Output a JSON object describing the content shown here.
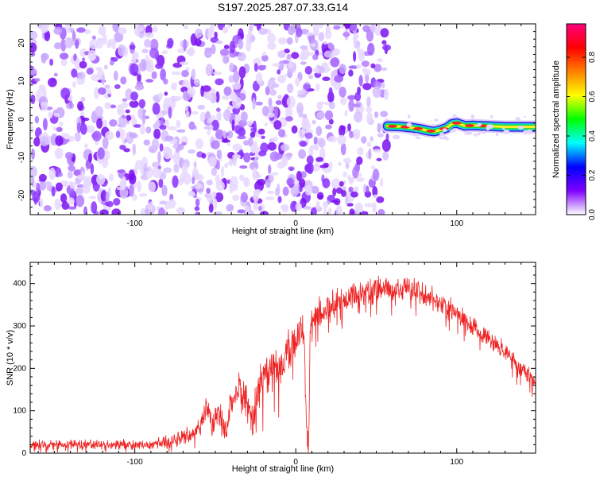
{
  "title": "S197.2025.287.07.33.G14",
  "chart_data": [
    {
      "type": "heatmap",
      "xlabel": "Height of straight line (km)",
      "ylabel": "Frequency (Hz)",
      "xlim": [
        -165,
        149
      ],
      "ylim": [
        -25,
        25
      ],
      "xticks": [
        -100,
        0,
        100
      ],
      "yticks": [
        -20,
        -10,
        0,
        10,
        20
      ],
      "noise_region_x": [
        -165,
        57
      ],
      "signal_region_x": [
        57,
        149
      ],
      "signal_trace": {
        "x": [
          57,
          65,
          72,
          78,
          82,
          86,
          90,
          94,
          97,
          100,
          105,
          110,
          115,
          120,
          125,
          130,
          135,
          140,
          145,
          149
        ],
        "y": [
          -1.8,
          -1.9,
          -2.2,
          -2.6,
          -3.0,
          -3.2,
          -2.8,
          -2.2,
          -1.2,
          -1.0,
          -1.7,
          -1.6,
          -1.7,
          -1.8,
          -1.9,
          -2.0,
          -2.0,
          -2.0,
          -2.0,
          -2.0
        ]
      },
      "colorbar": {
        "label": "Normalized spectral amplitude",
        "min": 0.0,
        "max": 0.97,
        "ticks": [
          0.0,
          0.2,
          0.4,
          0.6,
          0.8
        ],
        "tick_labels": [
          "0.0",
          "0.2",
          "0.4",
          "0.6",
          "0.8"
        ],
        "colors": [
          "#ffffff",
          "#8000ff",
          "#0000ff",
          "#00ffff",
          "#00ff00",
          "#ffff00",
          "#ff8000",
          "#ff0000",
          "#ff0080"
        ]
      }
    },
    {
      "type": "line",
      "xlabel": "Height of straight line (km)",
      "ylabel": "SNR (10 * v/v)",
      "xlim": [
        -165,
        149
      ],
      "ylim": [
        0,
        450
      ],
      "xticks": [
        -100,
        0,
        100
      ],
      "yticks": [
        0,
        100,
        200,
        300,
        400
      ],
      "color": "#ee2222",
      "envelope": {
        "x": [
          -165,
          -90,
          -80,
          -68,
          -60,
          -55,
          -52,
          -48,
          -44,
          -40,
          -35,
          -30,
          -27,
          -24,
          -20,
          -15,
          -10,
          -5,
          0,
          5,
          7,
          8,
          9,
          10,
          12,
          15,
          20,
          30,
          40,
          50,
          60,
          70,
          80,
          90,
          100,
          110,
          120,
          130,
          140,
          149
        ],
        "y": [
          20,
          20,
          25,
          40,
          60,
          110,
          60,
          100,
          45,
          120,
          150,
          130,
          60,
          150,
          180,
          190,
          200,
          240,
          270,
          300,
          25,
          30,
          300,
          310,
          320,
          330,
          345,
          360,
          375,
          385,
          385,
          385,
          375,
          355,
          330,
          300,
          270,
          240,
          200,
          170
        ]
      },
      "noise_amplitude": {
        "x": [
          -165,
          -90,
          -70,
          -40,
          -30,
          -20,
          0,
          10,
          30,
          60,
          100,
          149
        ],
        "y": [
          12,
          12,
          20,
          35,
          45,
          50,
          45,
          40,
          35,
          30,
          25,
          20
        ]
      }
    }
  ]
}
